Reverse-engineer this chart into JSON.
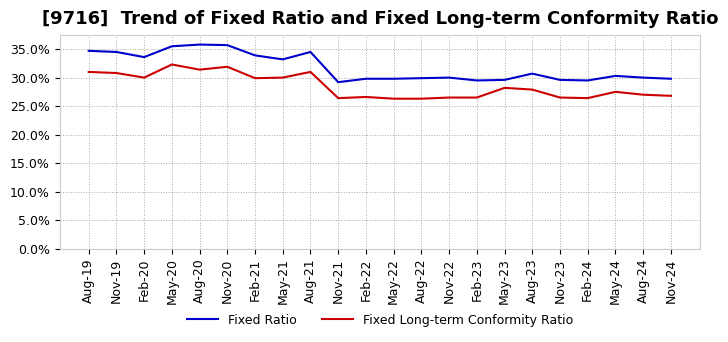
{
  "title": "[9716]  Trend of Fixed Ratio and Fixed Long-term Conformity Ratio",
  "x_labels": [
    "Aug-19",
    "Nov-19",
    "Feb-20",
    "May-20",
    "Aug-20",
    "Nov-20",
    "Feb-21",
    "May-21",
    "Aug-21",
    "Nov-21",
    "Feb-22",
    "May-22",
    "Aug-22",
    "Nov-22",
    "Feb-23",
    "May-23",
    "Aug-23",
    "Nov-23",
    "Feb-24",
    "May-24",
    "Aug-24",
    "Nov-24"
  ],
  "fixed_ratio": [
    0.347,
    0.345,
    0.336,
    0.355,
    0.358,
    0.357,
    0.339,
    0.332,
    0.345,
    0.292,
    0.298,
    0.298,
    0.299,
    0.3,
    0.295,
    0.296,
    0.307,
    0.296,
    0.295,
    0.303,
    0.3,
    0.298
  ],
  "fixed_lt_ratio": [
    0.31,
    0.308,
    0.3,
    0.323,
    0.314,
    0.319,
    0.299,
    0.3,
    0.31,
    0.264,
    0.266,
    0.263,
    0.263,
    0.265,
    0.265,
    0.282,
    0.279,
    0.265,
    0.264,
    0.275,
    0.27,
    0.268
  ],
  "fixed_ratio_color": "#0000cc",
  "fixed_lt_ratio_color": "#cc0000",
  "ylim": [
    0.0,
    0.375
  ],
  "yticks": [
    0.0,
    0.05,
    0.1,
    0.15,
    0.2,
    0.25,
    0.3,
    0.35
  ],
  "grid_color": "#aaaaaa",
  "background_color": "#ffffff",
  "legend_fixed_ratio": "Fixed Ratio",
  "legend_fixed_lt_ratio": "Fixed Long-term Conformity Ratio",
  "title_fontsize": 13,
  "axis_fontsize": 9,
  "legend_fontsize": 9,
  "line_width": 1.5
}
